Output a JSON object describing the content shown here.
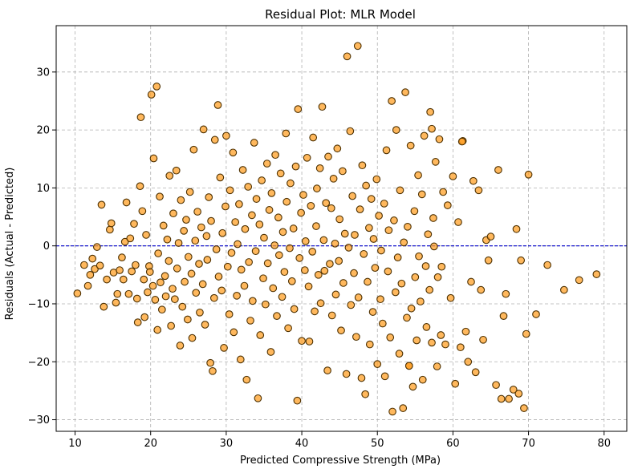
{
  "chart_data": {
    "type": "scatter",
    "title": "Residual Plot: MLR Model",
    "xlabel": "Predicted Compressive Strength (MPa)",
    "ylabel": "Residuals (Actual - Predicted)",
    "xlim": [
      7.5,
      83
    ],
    "ylim": [
      -32,
      38
    ],
    "xticks": [
      10,
      20,
      30,
      40,
      50,
      60,
      70,
      80
    ],
    "yticks": [
      -30,
      -20,
      -10,
      0,
      10,
      20,
      30
    ],
    "xtick_labels": [
      "10",
      "20",
      "30",
      "40",
      "50",
      "60",
      "70",
      "80"
    ],
    "ytick_labels": [
      "−30",
      "−20",
      "−10",
      "0",
      "10",
      "20",
      "30"
    ],
    "grid": true,
    "reference_line": {
      "y": 0,
      "style": "dashed",
      "color": "#0000cc"
    },
    "marker_fill": "#ff9d1f",
    "marker_edge": "#4d3000",
    "points": [
      [
        10.3,
        -8.2
      ],
      [
        11.2,
        -3.3
      ],
      [
        11.7,
        -6.9
      ],
      [
        12.0,
        -5.0
      ],
      [
        12.3,
        -2.2
      ],
      [
        12.6,
        -4.0
      ],
      [
        12.9,
        -0.2
      ],
      [
        13.3,
        -3.4
      ],
      [
        13.5,
        7.1
      ],
      [
        13.8,
        -10.5
      ],
      [
        14.2,
        -5.8
      ],
      [
        14.6,
        2.8
      ],
      [
        14.8,
        3.9
      ],
      [
        15.1,
        -4.6
      ],
      [
        15.4,
        -9.8
      ],
      [
        15.6,
        -8.3
      ],
      [
        15.9,
        -4.2
      ],
      [
        16.2,
        -2.0
      ],
      [
        16.4,
        -5.8
      ],
      [
        16.6,
        0.7
      ],
      [
        16.8,
        7.5
      ],
      [
        17.1,
        -8.3
      ],
      [
        17.3,
        1.3
      ],
      [
        17.5,
        -4.4
      ],
      [
        17.8,
        3.8
      ],
      [
        18.0,
        -3.3
      ],
      [
        18.2,
        -9.1
      ],
      [
        18.3,
        -13.2
      ],
      [
        18.6,
        10.3
      ],
      [
        18.7,
        22.2
      ],
      [
        18.9,
        6.0
      ],
      [
        19.1,
        -5.8
      ],
      [
        19.2,
        -12.3
      ],
      [
        19.4,
        1.9
      ],
      [
        19.6,
        -8.0
      ],
      [
        19.8,
        -3.5
      ],
      [
        19.9,
        -4.5
      ],
      [
        20.1,
        26.1
      ],
      [
        20.3,
        -6.9
      ],
      [
        20.4,
        15.1
      ],
      [
        20.6,
        -9.3
      ],
      [
        20.8,
        27.5
      ],
      [
        20.9,
        -14.5
      ],
      [
        21.0,
        -1.3
      ],
      [
        21.2,
        8.5
      ],
      [
        21.3,
        -6.3
      ],
      [
        21.5,
        -11.0
      ],
      [
        21.7,
        3.5
      ],
      [
        21.9,
        -5.2
      ],
      [
        22.0,
        -8.7
      ],
      [
        22.2,
        1.1
      ],
      [
        22.4,
        -2.6
      ],
      [
        22.5,
        12.1
      ],
      [
        22.7,
        -13.8
      ],
      [
        22.9,
        -7.4
      ],
      [
        23.0,
        5.6
      ],
      [
        23.2,
        -9.2
      ],
      [
        23.4,
        13.0
      ],
      [
        23.5,
        -3.9
      ],
      [
        23.7,
        0.5
      ],
      [
        23.9,
        -17.2
      ],
      [
        24.0,
        7.9
      ],
      [
        24.2,
        -10.5
      ],
      [
        24.4,
        2.6
      ],
      [
        24.5,
        -6.2
      ],
      [
        24.7,
        4.5
      ],
      [
        24.9,
        -12.7
      ],
      [
        25.0,
        -1.9
      ],
      [
        25.2,
        9.3
      ],
      [
        25.4,
        -4.8
      ],
      [
        25.5,
        -15.9
      ],
      [
        25.7,
        16.6
      ],
      [
        25.9,
        0.9
      ],
      [
        26.0,
        -8.1
      ],
      [
        26.2,
        5.9
      ],
      [
        26.4,
        -3.1
      ],
      [
        26.5,
        -11.5
      ],
      [
        26.7,
        3.2
      ],
      [
        26.9,
        -6.6
      ],
      [
        27.0,
        20.1
      ],
      [
        27.2,
        -13.6
      ],
      [
        27.4,
        1.7
      ],
      [
        27.5,
        -2.4
      ],
      [
        27.7,
        8.4
      ],
      [
        27.9,
        -20.2
      ],
      [
        28.0,
        4.3
      ],
      [
        28.2,
        -21.6
      ],
      [
        28.4,
        -9.0
      ],
      [
        28.5,
        18.3
      ],
      [
        28.7,
        -0.6
      ],
      [
        28.9,
        24.3
      ],
      [
        29.0,
        -5.3
      ],
      [
        29.2,
        11.8
      ],
      [
        29.4,
        -7.7
      ],
      [
        29.5,
        2.2
      ],
      [
        29.7,
        -17.6
      ],
      [
        29.9,
        6.8
      ],
      [
        30.0,
        19.0
      ],
      [
        30.2,
        -3.6
      ],
      [
        30.4,
        -11.8
      ],
      [
        30.5,
        9.6
      ],
      [
        30.7,
        -1.2
      ],
      [
        30.9,
        16.1
      ],
      [
        31.0,
        -14.9
      ],
      [
        31.2,
        4.1
      ],
      [
        31.4,
        -8.6
      ],
      [
        31.5,
        0.3
      ],
      [
        31.7,
        7.2
      ],
      [
        31.9,
        -19.6
      ],
      [
        32.0,
        -4.1
      ],
      [
        32.2,
        13.1
      ],
      [
        32.4,
        -6.9
      ],
      [
        32.5,
        2.9
      ],
      [
        32.7,
        -23.1
      ],
      [
        32.9,
        10.2
      ],
      [
        33.0,
        -2.8
      ],
      [
        33.2,
        -12.9
      ],
      [
        33.4,
        5.3
      ],
      [
        33.5,
        -9.5
      ],
      [
        33.7,
        17.8
      ],
      [
        33.9,
        -0.9
      ],
      [
        34.0,
        8.1
      ],
      [
        34.2,
        -26.3
      ],
      [
        34.4,
        3.7
      ],
      [
        34.5,
        -15.4
      ],
      [
        34.7,
        11.3
      ],
      [
        34.9,
        -5.6
      ],
      [
        35.0,
        1.4
      ],
      [
        35.2,
        -10.1
      ],
      [
        35.4,
        14.2
      ],
      [
        35.5,
        -3.0
      ],
      [
        35.7,
        6.2
      ],
      [
        35.9,
        -18.3
      ],
      [
        36.0,
        9.1
      ],
      [
        36.2,
        -7.3
      ],
      [
        36.4,
        0.1
      ],
      [
        36.5,
        15.7
      ],
      [
        36.7,
        -12.1
      ],
      [
        36.9,
        4.9
      ],
      [
        37.0,
        -1.6
      ],
      [
        37.2,
        12.5
      ],
      [
        37.4,
        -8.8
      ],
      [
        37.5,
        2.4
      ],
      [
        37.7,
        -4.5
      ],
      [
        37.9,
        19.4
      ],
      [
        38.0,
        7.6
      ],
      [
        38.2,
        -14.2
      ],
      [
        38.4,
        -0.4
      ],
      [
        38.5,
        10.8
      ],
      [
        38.7,
        -6.1
      ],
      [
        38.9,
        3.0
      ],
      [
        39.0,
        -10.9
      ],
      [
        39.2,
        13.7
      ],
      [
        39.4,
        -26.7
      ],
      [
        39.5,
        23.6
      ],
      [
        39.7,
        -2.1
      ],
      [
        39.9,
        5.7
      ],
      [
        40.0,
        -16.4
      ],
      [
        40.2,
        8.8
      ],
      [
        40.4,
        -4.2
      ],
      [
        40.5,
        0.8
      ],
      [
        40.7,
        15.2
      ],
      [
        40.9,
        -7.0
      ],
      [
        41.0,
        -16.5
      ],
      [
        41.2,
        6.9
      ],
      [
        41.4,
        -1.0
      ],
      [
        41.5,
        18.7
      ],
      [
        41.7,
        -11.3
      ],
      [
        41.9,
        3.4
      ],
      [
        42.0,
        9.9
      ],
      [
        42.2,
        -5.0
      ],
      [
        42.4,
        13.4
      ],
      [
        42.5,
        -9.9
      ],
      [
        42.7,
        24.0
      ],
      [
        42.9,
        1.0
      ],
      [
        43.0,
        -4.3
      ],
      [
        43.2,
        7.4
      ],
      [
        43.4,
        -21.5
      ],
      [
        43.5,
        15.4
      ],
      [
        43.7,
        -3.1
      ],
      [
        43.9,
        6.5
      ],
      [
        44.0,
        -12.0
      ],
      [
        44.2,
        11.6
      ],
      [
        44.4,
        0.4
      ],
      [
        44.5,
        -8.4
      ],
      [
        44.7,
        16.8
      ],
      [
        44.9,
        -2.6
      ],
      [
        45.0,
        4.6
      ],
      [
        45.2,
        -14.6
      ],
      [
        45.4,
        12.9
      ],
      [
        45.5,
        -6.4
      ],
      [
        45.7,
        2.1
      ],
      [
        45.9,
        -22.1
      ],
      [
        46.0,
        32.7
      ],
      [
        46.2,
        -0.3
      ],
      [
        46.4,
        19.8
      ],
      [
        46.5,
        -10.2
      ],
      [
        46.7,
        8.6
      ],
      [
        46.9,
        -4.7
      ],
      [
        47.0,
        1.9
      ],
      [
        47.2,
        -15.7
      ],
      [
        47.4,
        34.5
      ],
      [
        47.5,
        -8.9
      ],
      [
        47.7,
        6.3
      ],
      [
        47.9,
        -22.8
      ],
      [
        48.0,
        13.9
      ],
      [
        48.2,
        -1.4
      ],
      [
        48.4,
        -25.6
      ],
      [
        48.5,
        10.4
      ],
      [
        48.7,
        -6.2
      ],
      [
        48.9,
        3.1
      ],
      [
        49.0,
        -17.0
      ],
      [
        49.2,
        8.1
      ],
      [
        49.4,
        -11.4
      ],
      [
        49.5,
        1.2
      ],
      [
        49.7,
        -3.8
      ],
      [
        49.9,
        11.5
      ],
      [
        50.0,
        -20.4
      ],
      [
        50.2,
        5.2
      ],
      [
        50.4,
        -9.2
      ],
      [
        50.5,
        -0.8
      ],
      [
        50.7,
        -13.4
      ],
      [
        50.9,
        7.3
      ],
      [
        51.0,
        -22.5
      ],
      [
        51.2,
        16.5
      ],
      [
        51.4,
        -4.4
      ],
      [
        51.5,
        2.7
      ],
      [
        51.7,
        -15.8
      ],
      [
        51.9,
        25.0
      ],
      [
        52.0,
        -28.6
      ],
      [
        52.2,
        4.4
      ],
      [
        52.4,
        -8.0
      ],
      [
        52.5,
        20.0
      ],
      [
        52.7,
        -2.0
      ],
      [
        52.9,
        -18.6
      ],
      [
        53.0,
        9.6
      ],
      [
        53.2,
        -6.5
      ],
      [
        53.4,
        -28.0
      ],
      [
        53.5,
        0.6
      ],
      [
        53.7,
        26.5
      ],
      [
        53.9,
        -12.4
      ],
      [
        54.0,
        3.3
      ],
      [
        54.2,
        -20.7
      ],
      [
        54.4,
        17.3
      ],
      [
        54.5,
        -10.8
      ],
      [
        54.7,
        -24.3
      ],
      [
        54.9,
        6.0
      ],
      [
        55.0,
        -5.4
      ],
      [
        55.2,
        -16.3
      ],
      [
        55.4,
        12.2
      ],
      [
        55.5,
        -1.8
      ],
      [
        55.7,
        -9.6
      ],
      [
        55.9,
        8.9
      ],
      [
        56.0,
        -23.1
      ],
      [
        56.2,
        19.0
      ],
      [
        56.4,
        -3.5
      ],
      [
        56.5,
        -14.0
      ],
      [
        56.7,
        2.0
      ],
      [
        56.9,
        -7.6
      ],
      [
        57.0,
        23.1
      ],
      [
        57.2,
        -16.7
      ],
      [
        57.4,
        4.8
      ],
      [
        57.5,
        -0.1
      ],
      [
        57.7,
        14.5
      ],
      [
        57.9,
        -20.8
      ],
      [
        58.0,
        -5.4
      ],
      [
        58.2,
        18.4
      ],
      [
        58.4,
        -15.4
      ],
      [
        58.5,
        -3.6
      ],
      [
        58.7,
        9.3
      ],
      [
        59.0,
        -17.0
      ],
      [
        59.3,
        7.0
      ],
      [
        59.7,
        -9.0
      ],
      [
        60.0,
        12.0
      ],
      [
        60.3,
        -23.8
      ],
      [
        60.7,
        4.1
      ],
      [
        61.0,
        -17.5
      ],
      [
        61.3,
        18.1
      ],
      [
        61.7,
        -14.8
      ],
      [
        62.0,
        -20.0
      ],
      [
        62.4,
        -6.2
      ],
      [
        62.7,
        11.2
      ],
      [
        63.0,
        -21.8
      ],
      [
        63.4,
        9.6
      ],
      [
        63.7,
        -7.6
      ],
      [
        64.0,
        -16.2
      ],
      [
        64.4,
        1.0
      ],
      [
        64.7,
        -2.5
      ],
      [
        65.0,
        1.6
      ],
      [
        65.7,
        -24.0
      ],
      [
        66.0,
        13.1
      ],
      [
        66.4,
        -26.4
      ],
      [
        66.7,
        -12.1
      ],
      [
        67.0,
        -8.3
      ],
      [
        67.4,
        -26.4
      ],
      [
        68.0,
        -24.8
      ],
      [
        68.4,
        2.9
      ],
      [
        68.7,
        -25.5
      ],
      [
        69.0,
        -2.5
      ],
      [
        69.4,
        -28.0
      ],
      [
        69.7,
        -15.2
      ],
      [
        70.0,
        12.3
      ],
      [
        71.0,
        -11.8
      ],
      [
        72.5,
        -3.3
      ],
      [
        74.7,
        -7.6
      ],
      [
        76.7,
        -5.9
      ],
      [
        79.0,
        -4.9
      ],
      [
        54.2,
        -20.7
      ],
      [
        57.2,
        20.2
      ],
      [
        61.2,
        18.0
      ]
    ]
  }
}
